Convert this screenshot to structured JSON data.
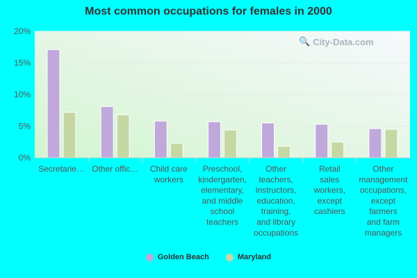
{
  "chart_data": {
    "type": "bar",
    "title": "Most common occupations for females in 2000",
    "categories": [
      "Secretarie…",
      "Other offic…",
      "Child care\nworkers",
      "Preschool,\nkindergarten,\nelementary,\nand middle\nschool\nteachers",
      "Other\nteachers,\ninstructors,\neducation,\ntraining,\nand library\noccupations",
      "Retail\nsales\nworkers,\nexcept\ncashiers",
      "Other\nmanagement\noccupations,\nexcept\nfarmers\nand farm\nmanagers"
    ],
    "series": [
      {
        "name": "Golden Beach",
        "color": "#c0a8db",
        "values": [
          17.1,
          8.1,
          5.8,
          5.7,
          5.5,
          5.3,
          4.6
        ]
      },
      {
        "name": "Maryland",
        "color": "#c5d8a4",
        "values": [
          7.2,
          6.8,
          2.3,
          4.4,
          1.8,
          2.5,
          4.5
        ]
      }
    ],
    "ylim": [
      0,
      20
    ],
    "yticks": [
      "0%",
      "5%",
      "10%",
      "15%",
      "20%"
    ],
    "grid": true,
    "legend_position": "bottom"
  },
  "watermark": "City-Data.com"
}
